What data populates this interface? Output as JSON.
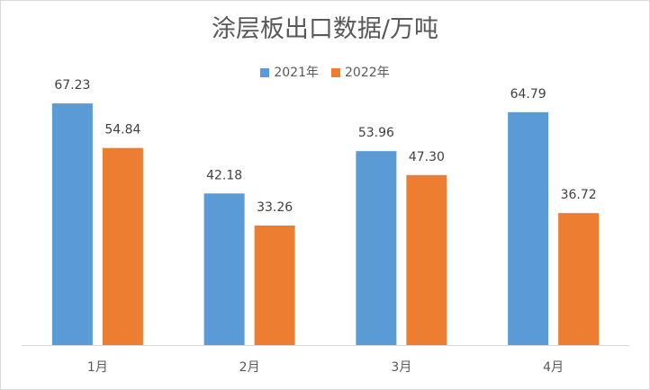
{
  "chart_data": {
    "type": "bar",
    "title": "涂层板出口数据/万吨",
    "categories": [
      "1月",
      "2月",
      "3月",
      "4月"
    ],
    "series": [
      {
        "name": "2021年",
        "color": "#5b9bd5",
        "values": [
          67.23,
          42.18,
          53.96,
          64.79
        ]
      },
      {
        "name": "2022年",
        "color": "#ed7d31",
        "values": [
          54.84,
          33.26,
          47.3,
          36.72
        ]
      }
    ],
    "ylim": [
      0,
      75
    ],
    "grid": false,
    "legend_position": "top"
  }
}
